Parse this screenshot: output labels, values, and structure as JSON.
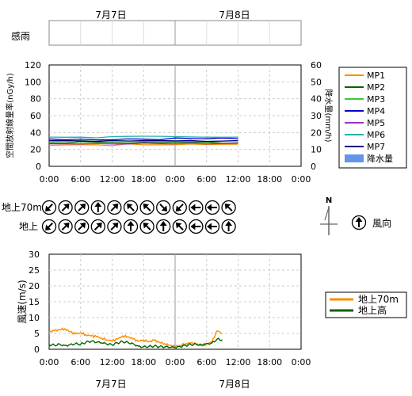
{
  "dates": [
    "7月7日",
    "7月8日"
  ],
  "rain_sense_label": "感雨",
  "radiation_chart": {
    "ylabel": "空間放射線量率(nGy/h)",
    "ylabel2": "降水量(mm/h)",
    "yticks": [
      "0",
      "20",
      "40",
      "60",
      "80",
      "100",
      "120"
    ],
    "y2ticks": [
      "0",
      "10",
      "20",
      "30",
      "40",
      "50",
      "60"
    ],
    "xticks": [
      "0:00",
      "6:00",
      "12:00",
      "18:00",
      "0:00",
      "6:00",
      "12:00",
      "18:00",
      "0:00"
    ],
    "legend": [
      "MP1",
      "MP2",
      "MP3",
      "MP4",
      "MP5",
      "MP6",
      "MP7",
      "降水量"
    ]
  },
  "wind_dir": {
    "row1_label": "地上70m",
    "row2_label": "地上",
    "legend_label": "風向",
    "north": "N"
  },
  "wind_speed_chart": {
    "ylabel": "風速(m/s)",
    "yticks": [
      "0",
      "5",
      "10",
      "15",
      "20",
      "25",
      "30"
    ],
    "xticks": [
      "0:00",
      "6:00",
      "12:00",
      "18:00",
      "0:00",
      "6:00",
      "12:00",
      "18:00",
      "0:00"
    ],
    "legend": [
      "地上70m",
      "地上高"
    ]
  },
  "chart_data": [
    {
      "type": "line",
      "title": "",
      "xlabel": "",
      "ylabel": "空間放射線量率(nGy/h)",
      "ylim": [
        0,
        120
      ],
      "y2label": "降水量(mm/h)",
      "y2lim": [
        0,
        60
      ],
      "x_hours": [
        0,
        3,
        6,
        9,
        12,
        15,
        18,
        21,
        24,
        27,
        30,
        33,
        36
      ],
      "series": [
        {
          "name": "MP1",
          "color": "#FF8C00",
          "values": [
            25,
            25,
            26,
            25,
            25,
            26,
            26,
            25,
            26,
            26,
            26,
            26,
            26
          ]
        },
        {
          "name": "MP2",
          "color": "#006400",
          "values": [
            28,
            28,
            29,
            28,
            28,
            28,
            29,
            28,
            28,
            28,
            29,
            28,
            28
          ]
        },
        {
          "name": "MP3",
          "color": "#32CD32",
          "values": [
            29,
            29,
            30,
            29,
            30,
            30,
            30,
            30,
            30,
            30,
            30,
            30,
            30
          ]
        },
        {
          "name": "MP4",
          "color": "#0000CD",
          "values": [
            32,
            32,
            32,
            31,
            32,
            32,
            32,
            32,
            33,
            33,
            33,
            33,
            33
          ]
        },
        {
          "name": "MP5",
          "color": "#9932CC",
          "values": [
            27,
            26,
            27,
            27,
            26,
            27,
            27,
            27,
            27,
            27,
            27,
            27,
            27
          ]
        },
        {
          "name": "MP6",
          "color": "#20B2AA",
          "values": [
            35,
            35,
            35,
            34,
            35,
            35,
            35,
            35,
            35,
            35,
            35,
            35,
            35
          ]
        },
        {
          "name": "MP7",
          "color": "#000080",
          "values": [
            30,
            30,
            30,
            30,
            31,
            30,
            30,
            30,
            30,
            31,
            30,
            30,
            30
          ]
        }
      ],
      "precipitation": {
        "name": "降水量",
        "color": "#6495ED",
        "values": [
          0,
          0,
          0,
          0,
          0,
          0,
          0,
          0,
          0,
          0,
          0,
          0,
          0
        ]
      }
    },
    {
      "type": "line",
      "title": "",
      "xlabel": "",
      "ylabel": "風速(m/s)",
      "ylim": [
        0,
        30
      ],
      "x_hours": [
        0,
        1,
        2,
        3,
        4,
        5,
        6,
        7,
        8,
        9,
        10,
        11,
        12,
        13,
        14,
        15,
        16,
        17,
        18,
        19,
        20,
        21,
        22,
        23,
        24,
        25,
        26,
        27,
        28,
        29,
        30,
        31,
        32,
        33
      ],
      "series": [
        {
          "name": "地上70m",
          "color": "#FF8C00",
          "values": [
            5.5,
            5.8,
            6.2,
            6.5,
            5.5,
            4.8,
            5.2,
            4.6,
            4.2,
            4.0,
            3.5,
            3.0,
            2.6,
            3.2,
            4.2,
            4.0,
            3.2,
            2.5,
            3.0,
            2.4,
            2.8,
            2.2,
            1.8,
            1.2,
            0.8,
            1.2,
            1.8,
            2.0,
            1.6,
            1.2,
            1.8,
            2.2,
            5.8,
            5.0
          ]
        },
        {
          "name": "地上高",
          "color": "#006400",
          "values": [
            1.5,
            1.3,
            1.6,
            1.2,
            1.5,
            1.8,
            1.6,
            2.2,
            2.5,
            2.2,
            2.0,
            1.6,
            1.4,
            2.0,
            2.4,
            2.2,
            1.8,
            1.0,
            0.8,
            0.9,
            1.0,
            0.8,
            0.7,
            0.6,
            0.5,
            0.8,
            1.2,
            1.5,
            1.6,
            1.4,
            1.8,
            2.0,
            3.2,
            3.0
          ]
        }
      ]
    }
  ],
  "wind_directions": {
    "row1_deg": [
      225,
      45,
      45,
      0,
      45,
      315,
      315,
      135,
      225,
      270,
      270,
      315
    ],
    "row2_deg": [
      225,
      45,
      45,
      45,
      45,
      0,
      315,
      0,
      315,
      270,
      270,
      0
    ]
  }
}
